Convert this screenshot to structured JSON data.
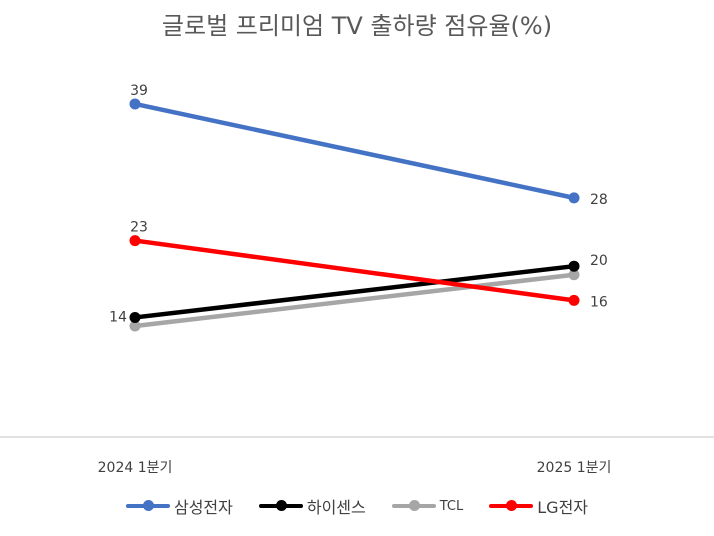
{
  "chart_data": {
    "type": "line",
    "title": "글로벌 프리미엄 TV 출하량 점유율(%)",
    "categories": [
      "2024 1분기",
      "2025 1분기"
    ],
    "ylim": [
      0,
      50
    ],
    "grid": false,
    "legend_position": "bottom",
    "series": [
      {
        "name": "삼성전자",
        "values": [
          39,
          28
        ],
        "color": "#4472C4",
        "labels": [
          "39",
          "28"
        ]
      },
      {
        "name": "하이센스",
        "values": [
          14,
          20
        ],
        "color": "#000000",
        "labels": [
          "14",
          "20"
        ]
      },
      {
        "name": "TCL",
        "values": [
          13,
          19
        ],
        "color": "#A6A6A6",
        "labels": [
          "",
          ""
        ]
      },
      {
        "name": "LG전자",
        "values": [
          23,
          16
        ],
        "color": "#FF0000",
        "labels": [
          "23",
          "16"
        ]
      }
    ]
  }
}
